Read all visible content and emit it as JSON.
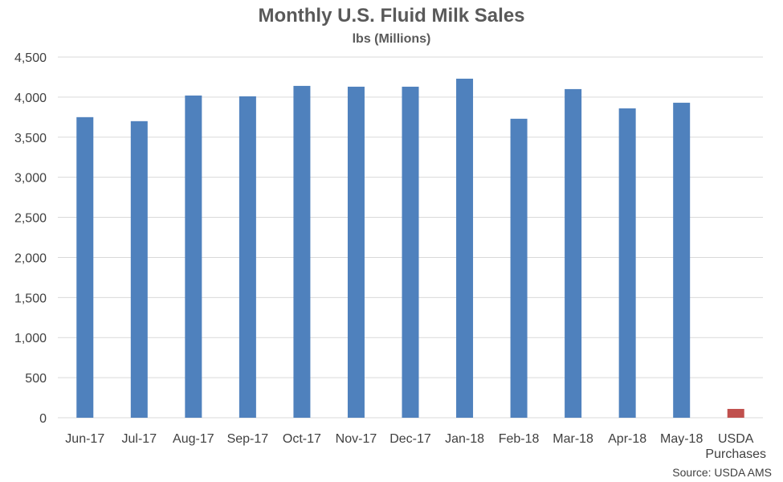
{
  "title": "Monthly U.S. Fluid Milk Sales",
  "subtitle": "lbs (Millions)",
  "source": "Source: USDA AMS",
  "chart_data": {
    "type": "bar",
    "title": "Monthly U.S. Fluid Milk Sales",
    "subtitle": "lbs (Millions)",
    "categories": [
      "Jun-17",
      "Jul-17",
      "Aug-17",
      "Sep-17",
      "Oct-17",
      "Nov-17",
      "Dec-17",
      "Jan-18",
      "Feb-18",
      "Mar-18",
      "Apr-18",
      "May-18",
      "USDA\nPurchases"
    ],
    "values": [
      3750,
      3700,
      4020,
      4010,
      4140,
      4130,
      4130,
      4230,
      3730,
      4100,
      3860,
      3930,
      110
    ],
    "bar_colors": [
      "#4f81bd",
      "#4f81bd",
      "#4f81bd",
      "#4f81bd",
      "#4f81bd",
      "#4f81bd",
      "#4f81bd",
      "#4f81bd",
      "#4f81bd",
      "#4f81bd",
      "#4f81bd",
      "#4f81bd",
      "#c0504d"
    ],
    "ylim": [
      0,
      4500
    ],
    "yticks": [
      0,
      500,
      1000,
      1500,
      2000,
      2500,
      3000,
      3500,
      4000,
      4500
    ],
    "ytick_labels": [
      "0",
      "500",
      "1,000",
      "1,500",
      "2,000",
      "2,500",
      "3,000",
      "3,500",
      "4,000",
      "4,500"
    ],
    "grid": true,
    "legend": "none",
    "xlabel": "",
    "ylabel": ""
  },
  "colors": {
    "primary_bar": "#4f81bd",
    "highlight_bar": "#c0504d",
    "gridline": "#d9d9d9",
    "text": "#595959"
  }
}
